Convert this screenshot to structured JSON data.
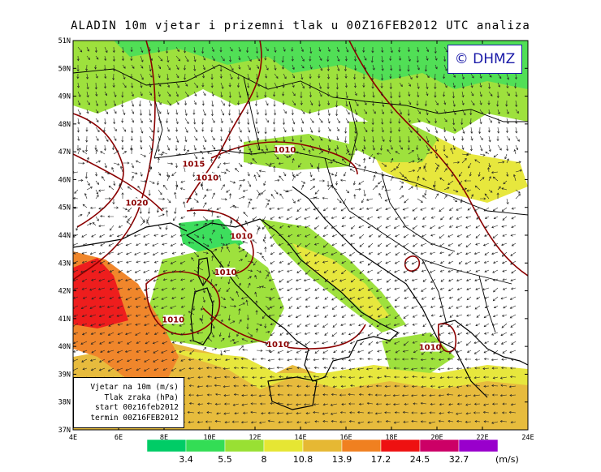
{
  "title": "ALADIN 10m vjetar i prizemni tlak u 00Z16FEB2012 UTC analiza",
  "credit": "© DHMZ",
  "info_box": {
    "lines": [
      "Vjetar na 10m (m/s)",
      "Tlak zraka (hPa)",
      "start 00z16feb2012",
      "termin 00Z16FEB2012"
    ]
  },
  "map": {
    "lat_labels": [
      "51N",
      "50N",
      "49N",
      "48N",
      "47N",
      "46N",
      "45N",
      "44N",
      "43N",
      "42N",
      "41N",
      "40N",
      "39N",
      "38N",
      "37N"
    ],
    "lon_labels": [
      "4E",
      "6E",
      "8E",
      "10E",
      "12E",
      "14E",
      "16E",
      "18E",
      "20E",
      "22E",
      "24E"
    ],
    "isobar_labels": [
      {
        "text": "1010",
        "lon": 13.3,
        "lat": 47.0
      },
      {
        "text": "1015",
        "lon": 9.3,
        "lat": 46.5
      },
      {
        "text": "1010",
        "lon": 9.9,
        "lat": 46.0
      },
      {
        "text": "1020",
        "lon": 6.8,
        "lat": 45.1
      },
      {
        "text": "1010",
        "lon": 11.4,
        "lat": 43.9
      },
      {
        "text": "1010",
        "lon": 10.7,
        "lat": 42.6
      },
      {
        "text": "1010",
        "lon": 8.4,
        "lat": 40.9
      },
      {
        "text": "1010",
        "lon": 13.0,
        "lat": 40.0
      },
      {
        "text": "1010",
        "lon": 19.7,
        "lat": 39.9
      }
    ]
  },
  "legend": {
    "unit": "(m/s)",
    "thresholds": [
      "3.4",
      "5.5",
      "8",
      "10.8",
      "13.9",
      "17.2",
      "24.5",
      "32.7"
    ],
    "colors": [
      "#00cc66",
      "#33dd55",
      "#99e033",
      "#e6e633",
      "#e6b833",
      "#f08020",
      "#ee1111",
      "#cc0066",
      "#9900cc"
    ]
  }
}
